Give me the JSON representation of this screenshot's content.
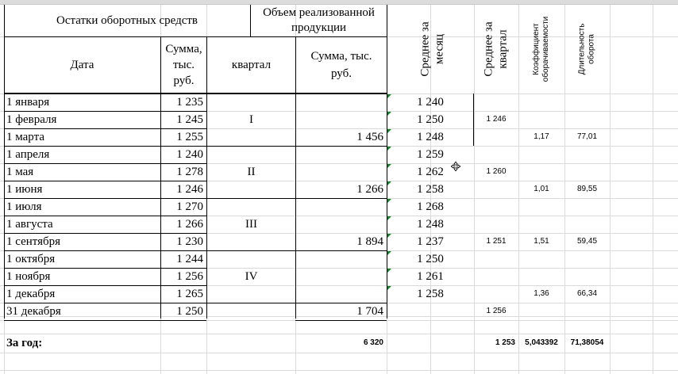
{
  "headers": {
    "balances_group": "Остатки оборотных средств",
    "sales_group_line1": "Объем реализованной",
    "sales_group_line2": "продукции",
    "date": "Дата",
    "sum_line1": "Сумма,",
    "sum_line2": "тыс.",
    "sum_line3": "руб.",
    "quarter": "квартал",
    "sales_sum_line1": "Сумма, тыс.",
    "sales_sum_line2": "руб.",
    "avg_month_line1": "Среднее за",
    "avg_month_line2": "месяц",
    "avg_quarter_line1": "Среднее за",
    "avg_quarter_line2": "квартал",
    "turnover_coef_line1": "Коэффициент",
    "turnover_coef_line2": "оборачиваемости",
    "turnover_duration_line1": "Длительность",
    "turnover_duration_line2": "оборота"
  },
  "rows": [
    {
      "date": "1 января",
      "sum": "1 235",
      "avg_month": "1 240",
      "avg_quarter": "",
      "coef": "",
      "duration": "",
      "sales": ""
    },
    {
      "date": "1 февраля",
      "sum": "1 245",
      "avg_month": "1 250",
      "avg_quarter": "1 246",
      "coef": "",
      "duration": "",
      "sales": ""
    },
    {
      "date": "1 марта",
      "sum": "1 255",
      "avg_month": "1 248",
      "avg_quarter": "",
      "coef": "1,17",
      "duration": "77,01",
      "sales": "1 456"
    },
    {
      "date": "1 апреля",
      "sum": "1 240",
      "avg_month": "1 259",
      "avg_quarter": "",
      "coef": "",
      "duration": "",
      "sales": ""
    },
    {
      "date": "1 мая",
      "sum": "1 278",
      "avg_month": "1 262",
      "avg_quarter": "1 260",
      "coef": "",
      "duration": "",
      "sales": ""
    },
    {
      "date": "1 июня",
      "sum": "1 246",
      "avg_month": "1 258",
      "avg_quarter": "",
      "coef": "1,01",
      "duration": "89,55",
      "sales": "1 266"
    },
    {
      "date": "1 июля",
      "sum": "1 270",
      "avg_month": "1 268",
      "avg_quarter": "",
      "coef": "",
      "duration": "",
      "sales": ""
    },
    {
      "date": " 1 августа",
      "sum": "1 266",
      "avg_month": "1 248",
      "avg_quarter": "",
      "coef": "",
      "duration": "",
      "sales": ""
    },
    {
      "date": " 1 сентября",
      "sum": "1 230",
      "avg_month": "1 237",
      "avg_quarter": "1 251",
      "coef": "1,51",
      "duration": "59,45",
      "sales": "1 894"
    },
    {
      "date": " 1 октября",
      "sum": "1 244",
      "avg_month": "1 250",
      "avg_quarter": "",
      "coef": "",
      "duration": "",
      "sales": ""
    },
    {
      "date": " 1 ноября",
      "sum": "1 256",
      "avg_month": "1 261",
      "avg_quarter": "",
      "coef": "",
      "duration": "",
      "sales": ""
    },
    {
      "date": " 1 декабря",
      "sum": "1 265",
      "avg_month": "1 258",
      "avg_quarter": "",
      "coef": "1,36",
      "duration": "66,34",
      "sales": ""
    },
    {
      "date": "31 декабря",
      "sum": "1 250",
      "avg_month": "",
      "avg_quarter": "1 256",
      "coef": "",
      "duration": "",
      "sales": "1 704"
    }
  ],
  "quarters": [
    "I",
    "II",
    "III",
    "IV"
  ],
  "totals": {
    "label": "За год:",
    "sales": "6 320",
    "avg_quarter": "1 253",
    "coef": "5,043392",
    "duration": "71,38054"
  },
  "colors": {
    "gridline": "#dadada",
    "border": "#000000",
    "error_marker": "#1b7d2c"
  },
  "icons": {
    "cursor": "move-crosshair-icon"
  }
}
